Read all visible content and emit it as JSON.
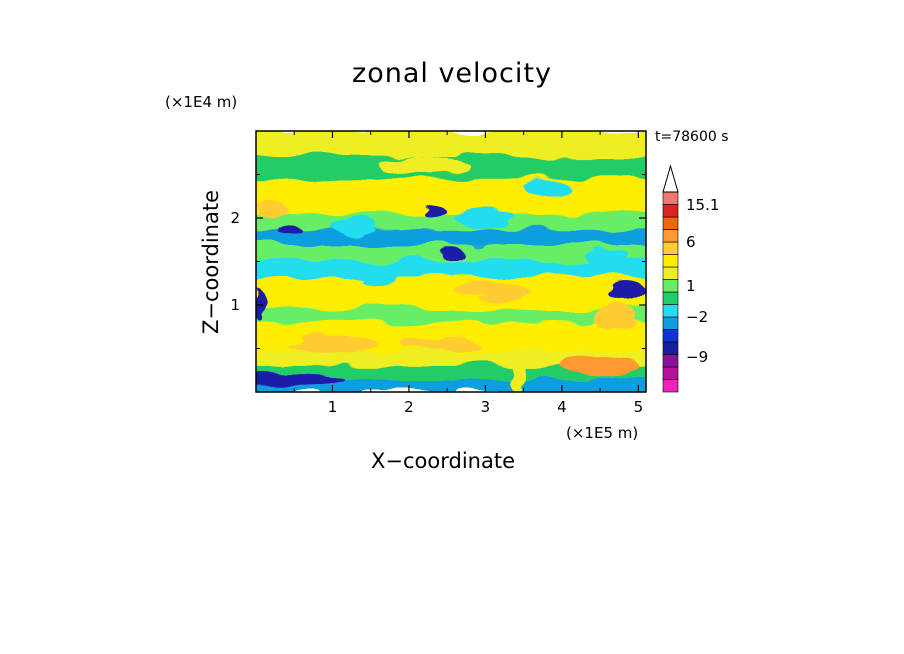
{
  "chart_data": {
    "type": "heatmap",
    "title": "zonal velocity",
    "xlabel": "X−coordinate",
    "ylabel": "Z−coordinate",
    "x_unit": "(×1E5 m)",
    "y_unit": "(×1E4 m)",
    "time_label": "t=78600 s",
    "xlim": [
      0,
      5.1
    ],
    "ylim": [
      0,
      3.0
    ],
    "x_ticks": [
      "1",
      "2",
      "3",
      "4",
      "5"
    ],
    "y_ticks": [
      "1",
      "2"
    ],
    "x_tick_values": [
      1,
      2,
      3,
      4,
      5
    ],
    "y_tick_values": [
      1,
      2
    ],
    "grid": false,
    "colorbar": {
      "labels": [
        "15.1",
        "6",
        "1",
        "−2",
        "−9"
      ],
      "label_values": [
        15.1,
        6,
        1,
        -2,
        -9
      ],
      "levels": [
        -15,
        -12,
        -9,
        -6,
        -4,
        -2,
        -1,
        0,
        1,
        2,
        4,
        6,
        9,
        12,
        15.1
      ],
      "colors": [
        "#ee22bb",
        "#bb1199",
        "#881199",
        "#1c1ca8",
        "#0a34d8",
        "#0e9ee0",
        "#22ddee",
        "#22cc66",
        "#66ee66",
        "#eeee22",
        "#ffee00",
        "#ffcc33",
        "#ff9933",
        "#ee6611",
        "#dd2222",
        "#ee7777",
        "#f4b4b4"
      ]
    },
    "bands": [
      {
        "z": 2.85,
        "value": 1.5
      },
      {
        "z": 2.55,
        "value": -0.5
      },
      {
        "z": 2.35,
        "value": 2.5
      },
      {
        "z": 2.15,
        "value": 3.5
      },
      {
        "z": 1.95,
        "value": 0.3
      },
      {
        "z": 1.78,
        "value": -2.5
      },
      {
        "z": 1.6,
        "value": 0.8
      },
      {
        "z": 1.42,
        "value": -1.5
      },
      {
        "z": 1.22,
        "value": 2.2
      },
      {
        "z": 1.05,
        "value": 3.2
      },
      {
        "z": 0.88,
        "value": 0.5
      },
      {
        "z": 0.72,
        "value": 2.0
      },
      {
        "z": 0.55,
        "value": 3.0
      },
      {
        "z": 0.38,
        "value": 1.5
      },
      {
        "z": 0.22,
        "value": -1.0
      },
      {
        "z": 0.08,
        "value": -4.0
      }
    ],
    "blobs": [
      {
        "x": 2.3,
        "z": 2.1,
        "rx": 0.15,
        "rz": 0.08,
        "value": -8
      },
      {
        "x": 2.55,
        "z": 1.6,
        "rx": 0.15,
        "rz": 0.07,
        "value": -8
      },
      {
        "x": 0.45,
        "z": 1.85,
        "rx": 0.15,
        "rz": 0.06,
        "value": -7
      },
      {
        "x": 4.85,
        "z": 1.15,
        "rx": 0.25,
        "rz": 0.12,
        "value": -9
      },
      {
        "x": 0.45,
        "z": 0.15,
        "rx": 0.7,
        "rz": 0.08,
        "value": -8
      },
      {
        "x": 0.05,
        "z": 1.0,
        "rx": 0.07,
        "rz": 0.18,
        "value": -8
      },
      {
        "x": 1.3,
        "z": 1.9,
        "rx": 0.3,
        "rz": 0.1,
        "value": -2
      },
      {
        "x": 3.0,
        "z": 2.0,
        "rx": 0.4,
        "rz": 0.12,
        "value": -2
      },
      {
        "x": 4.6,
        "z": 1.55,
        "rx": 0.3,
        "rz": 0.1,
        "value": -2
      },
      {
        "x": 3.8,
        "z": 2.35,
        "rx": 0.3,
        "rz": 0.08,
        "value": -2
      },
      {
        "x": 1.6,
        "z": 1.3,
        "rx": 0.25,
        "rz": 0.06,
        "value": -2
      },
      {
        "x": 3.1,
        "z": 1.15,
        "rx": 0.5,
        "rz": 0.1,
        "value": 4
      },
      {
        "x": 1.0,
        "z": 0.55,
        "rx": 0.6,
        "rz": 0.1,
        "value": 4
      },
      {
        "x": 2.4,
        "z": 0.55,
        "rx": 0.5,
        "rz": 0.08,
        "value": 4
      },
      {
        "x": 4.5,
        "z": 0.3,
        "rx": 0.5,
        "rz": 0.12,
        "value": 7
      },
      {
        "x": 0.2,
        "z": 2.1,
        "rx": 0.2,
        "rz": 0.1,
        "value": 4
      },
      {
        "x": 4.7,
        "z": 0.85,
        "rx": 0.3,
        "rz": 0.15,
        "value": 5
      },
      {
        "x": 2.2,
        "z": 2.6,
        "rx": 0.6,
        "rz": 0.1,
        "value": 1.5
      },
      {
        "x": 3.4,
        "z": 0.2,
        "rx": 0.1,
        "rz": 0.2,
        "value": 1.5
      }
    ]
  }
}
